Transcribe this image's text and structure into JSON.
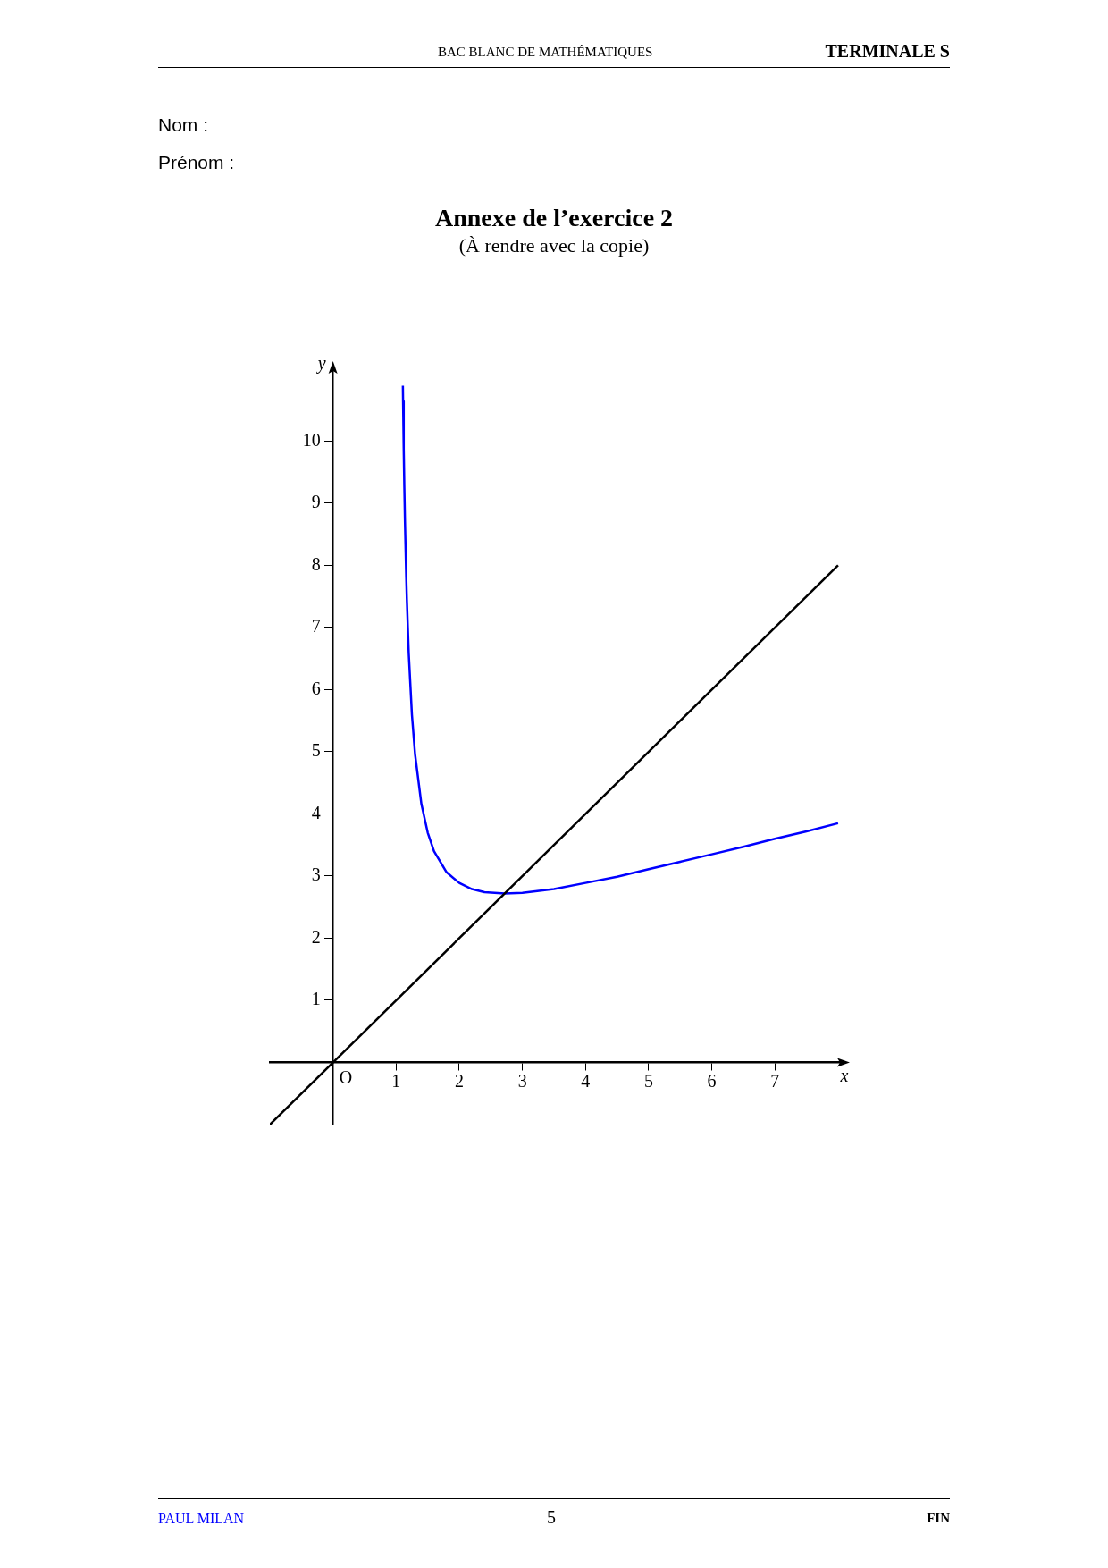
{
  "chart_data": {
    "type": "line",
    "title": "Annexe de l’exercice 2",
    "subtitle": "(À rendre avec la copie)",
    "xlabel": "x",
    "ylabel": "y",
    "annotations": [
      "BAC BLANC DE MATHÉMATIQUES",
      "TERMINALE S",
      "Nom :",
      "Prénom :",
      "PAUL MILAN",
      "5",
      "FIN",
      {
        "text": "O",
        "x": 0,
        "y": 0
      }
    ],
    "series": [
      {
        "color": "#000000",
        "x": [
          -1,
          8
        ],
        "values": [
          -1,
          8
        ]
      },
      {
        "color": "#0000ff",
        "x": [
          1.107,
          1.11,
          1.12,
          1.13,
          1.14,
          1.16,
          1.17,
          1.2,
          1.25,
          1.3,
          1.4,
          1.5,
          1.6,
          1.8,
          2,
          2.2,
          2.4,
          2.72,
          3,
          3.5,
          4,
          4.5,
          5,
          5.5,
          6,
          6.5,
          7,
          7.5,
          8
        ],
        "values": [
          10.89,
          10.64,
          9.88,
          9.25,
          8.7,
          7.82,
          7.45,
          6.58,
          5.6,
          4.96,
          4.16,
          3.7,
          3.4,
          3.06,
          2.89,
          2.79,
          2.74,
          2.72,
          2.73,
          2.79,
          2.89,
          2.99,
          3.11,
          3.23,
          3.35,
          3.47,
          3.6,
          3.72,
          3.85
        ]
      }
    ],
    "xlim": [
      -1,
      8.1
    ],
    "ylim": [
      -1,
      11.2
    ],
    "xticks": [
      1,
      2,
      3,
      4,
      5,
      6,
      7
    ],
    "yticks": [
      1,
      2,
      3,
      4,
      5,
      6,
      7,
      8,
      9,
      10
    ],
    "grid": false,
    "legend": false
  }
}
